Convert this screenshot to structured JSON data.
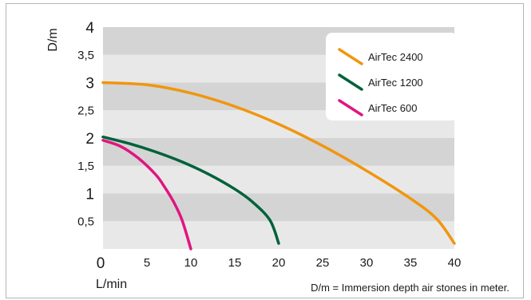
{
  "chart_data": {
    "type": "line",
    "xlabel": "L/min",
    "ylabel": "D/m",
    "xlim": [
      0,
      40
    ],
    "ylim": [
      0,
      4
    ],
    "x_ticks": [
      0,
      5,
      10,
      15,
      20,
      25,
      30,
      35,
      40
    ],
    "y_ticks": [
      {
        "value": 0.5,
        "label": "0,5"
      },
      {
        "value": 1,
        "label": "1"
      },
      {
        "value": 1.5,
        "label": "1,5"
      },
      {
        "value": 2,
        "label": "2"
      },
      {
        "value": 2.5,
        "label": "2,5"
      },
      {
        "value": 3,
        "label": "3"
      },
      {
        "value": 3.5,
        "label": "3,5"
      },
      {
        "value": 4,
        "label": "4"
      }
    ],
    "grid": "alternating horizontal bands",
    "band_colors": [
      "#e8e8e8",
      "#d4d4d4"
    ],
    "legend_position": "top-right",
    "series": [
      {
        "name": "AirTec 2400",
        "color": "#f0960f",
        "x": [
          0,
          5,
          10,
          15,
          20,
          25,
          30,
          35,
          38,
          40
        ],
        "y": [
          3.0,
          2.96,
          2.81,
          2.57,
          2.25,
          1.86,
          1.41,
          0.91,
          0.54,
          0.1
        ]
      },
      {
        "name": "AirTec 1200",
        "color": "#00613a",
        "x": [
          0,
          3,
          6,
          9,
          12,
          15,
          17,
          19,
          20
        ],
        "y": [
          2.02,
          1.9,
          1.75,
          1.57,
          1.35,
          1.08,
          0.85,
          0.52,
          0.1
        ]
      },
      {
        "name": "AirTec 600",
        "color": "#e0157f",
        "x": [
          0,
          2,
          4,
          6,
          7,
          8,
          9,
          10
        ],
        "y": [
          1.96,
          1.85,
          1.64,
          1.34,
          1.12,
          0.86,
          0.52,
          0.0
        ]
      }
    ],
    "footnote": "D/m = Immersion depth air stones in meter."
  }
}
